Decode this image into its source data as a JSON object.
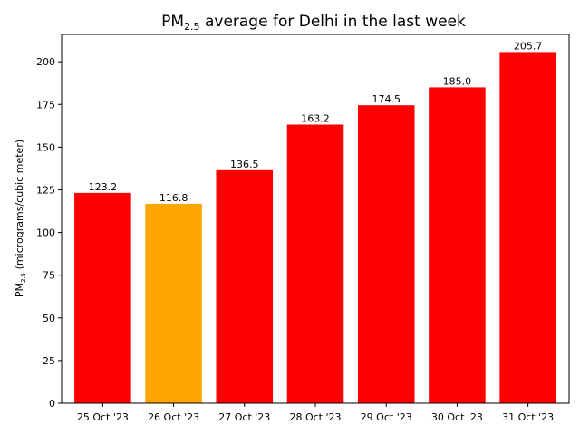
{
  "chart_data": {
    "type": "bar",
    "title": {
      "prefix": "PM",
      "subscript": "2.5",
      "suffix": " average for Delhi in the last week"
    },
    "ylabel": {
      "prefix": "PM",
      "subscript": "2.5",
      "suffix": " (micrograms/cubic meter)"
    },
    "xlabel": "",
    "categories": [
      "25 Oct '23",
      "26 Oct '23",
      "27 Oct '23",
      "28 Oct '23",
      "29 Oct '23",
      "30 Oct '23",
      "31 Oct '23"
    ],
    "values": [
      123.2,
      116.8,
      136.5,
      163.2,
      174.5,
      185.0,
      205.7
    ],
    "value_labels": [
      "123.2",
      "116.8",
      "136.5",
      "163.2",
      "174.5",
      "185.0",
      "205.7"
    ],
    "bar_colors": [
      "#ff0000",
      "#ffa500",
      "#ff0000",
      "#ff0000",
      "#ff0000",
      "#ff0000",
      "#ff0000"
    ],
    "yticks": [
      0,
      25,
      50,
      75,
      100,
      125,
      150,
      175,
      200
    ],
    "ylim": [
      0,
      216
    ],
    "grid": false,
    "legend": "none"
  }
}
